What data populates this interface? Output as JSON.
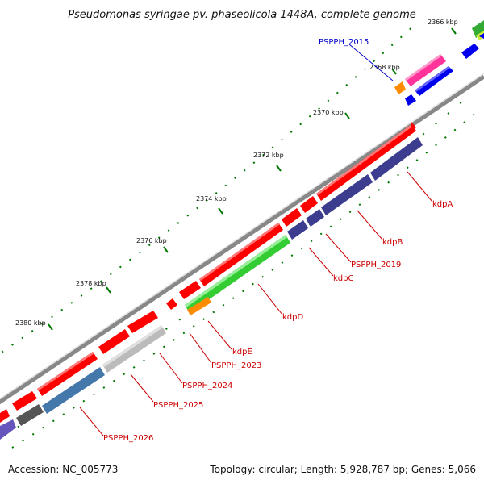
{
  "title": "Pseudomonas syringae pv. phaseolicola 1448A, complete genome",
  "footer": {
    "accession": "Accession: NC_005773",
    "summary": "Topology: circular; Length: 5,928,787 bp; Genes: 5,066"
  },
  "ticks": [
    "2366 kbp",
    "2368 kbp",
    "2370 kbp",
    "2372 kbp",
    "2374 kbp",
    "2376 kbp",
    "2378 kbp",
    "2380 kbp"
  ],
  "gene_labels": [
    {
      "text": "PSPPH_2015",
      "color": "#0000cc"
    },
    {
      "text": "kdpA",
      "color": "#cc0000"
    },
    {
      "text": "kdpB",
      "color": "#cc0000"
    },
    {
      "text": "PSPPH_2019",
      "color": "#cc0000"
    },
    {
      "text": "kdpC",
      "color": "#cc0000"
    },
    {
      "text": "kdpD",
      "color": "#cc0000"
    },
    {
      "text": "kdpE",
      "color": "#cc0000"
    },
    {
      "text": "PSPPH_2023",
      "color": "#cc0000"
    },
    {
      "text": "PSPPH_2024",
      "color": "#cc0000"
    },
    {
      "text": "PSPPH_2025",
      "color": "#cc0000"
    },
    {
      "text": "PSPPH_2026",
      "color": "#cc0000"
    }
  ],
  "colors": {
    "cds": "#ff0000",
    "cog_purple": "#3d3d8f",
    "cog_green": "#33cc33",
    "cog_orange": "#ff8c00",
    "cog_blue": "#0000ee",
    "cog_pink": "#ff3399",
    "cog_gray": "#bbbbbb",
    "cog_darkgray": "#555555",
    "cog_steel": "#4477aa",
    "backbone": "#8c8c8c",
    "tick_green": "#007700"
  }
}
